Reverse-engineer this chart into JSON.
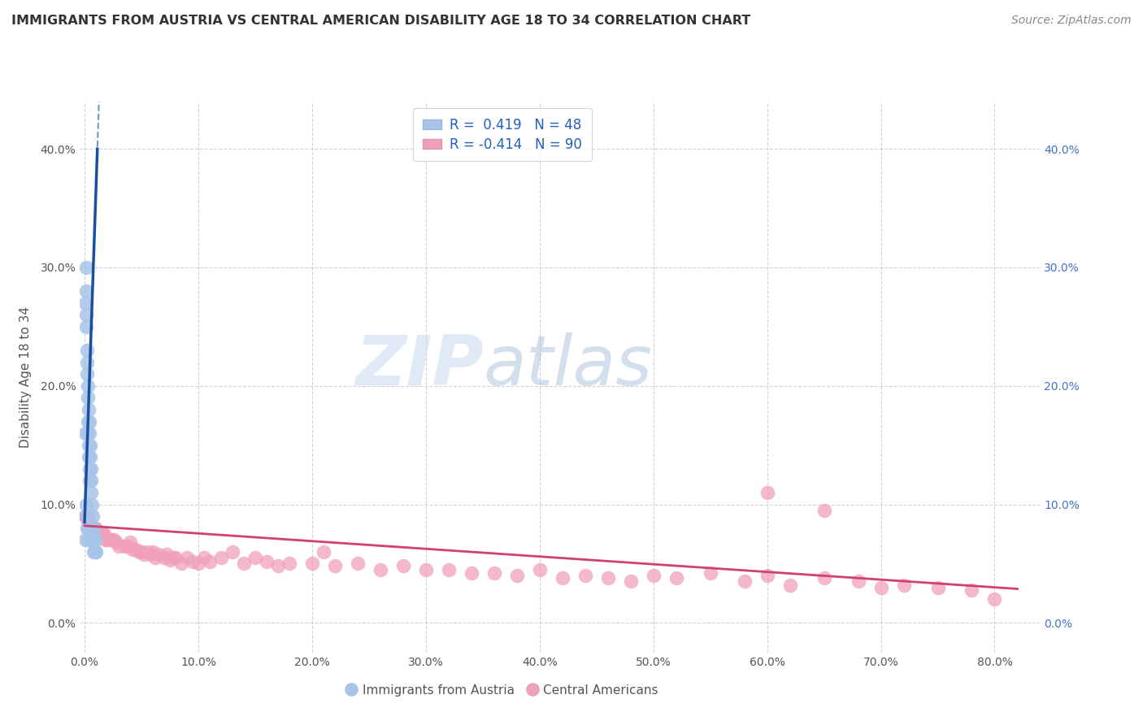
{
  "title": "IMMIGRANTS FROM AUSTRIA VS CENTRAL AMERICAN DISABILITY AGE 18 TO 34 CORRELATION CHART",
  "source": "Source: ZipAtlas.com",
  "ylabel": "Disability Age 18 to 34",
  "blue_label": "Immigrants from Austria",
  "pink_label": "Central Americans",
  "blue_R": 0.419,
  "blue_N": 48,
  "pink_R": -0.414,
  "pink_N": 90,
  "xlim": [
    -0.004,
    0.84
  ],
  "ylim": [
    -0.025,
    0.44
  ],
  "xticks": [
    0.0,
    0.1,
    0.2,
    0.3,
    0.4,
    0.5,
    0.6,
    0.7,
    0.8
  ],
  "yticks": [
    0.0,
    0.1,
    0.2,
    0.3,
    0.4
  ],
  "blue_color": "#a8c4e8",
  "pink_color": "#f0a0b8",
  "blue_line_color": "#1a4fa0",
  "pink_line_color": "#d04070",
  "watermark_zip": "ZIP",
  "watermark_atlas": "atlas",
  "background_color": "#ffffff",
  "grid_color": "#c8c8c8",
  "blue_scatter_x": [
    0.0008,
    0.0009,
    0.001,
    0.0012,
    0.0013,
    0.0014,
    0.0015,
    0.0016,
    0.0018,
    0.002,
    0.0021,
    0.0022,
    0.0024,
    0.0025,
    0.0026,
    0.0028,
    0.003,
    0.0032,
    0.0033,
    0.0035,
    0.0036,
    0.0038,
    0.004,
    0.0042,
    0.0043,
    0.0045,
    0.0046,
    0.0048,
    0.005,
    0.0052,
    0.0053,
    0.0055,
    0.0057,
    0.0059,
    0.006,
    0.0062,
    0.0065,
    0.0067,
    0.007,
    0.0072,
    0.0075,
    0.0078,
    0.008,
    0.0082,
    0.0085,
    0.009,
    0.0095,
    0.01
  ],
  "blue_scatter_y": [
    0.27,
    0.16,
    0.07,
    0.3,
    0.28,
    0.1,
    0.26,
    0.25,
    0.23,
    0.09,
    0.22,
    0.21,
    0.08,
    0.2,
    0.19,
    0.17,
    0.08,
    0.16,
    0.15,
    0.18,
    0.14,
    0.07,
    0.13,
    0.17,
    0.12,
    0.16,
    0.07,
    0.15,
    0.08,
    0.14,
    0.07,
    0.13,
    0.12,
    0.07,
    0.11,
    0.08,
    0.1,
    0.07,
    0.09,
    0.08,
    0.07,
    0.06,
    0.08,
    0.07,
    0.07,
    0.06,
    0.07,
    0.06
  ],
  "pink_scatter_x": [
    0.0005,
    0.001,
    0.0015,
    0.002,
    0.0025,
    0.003,
    0.0035,
    0.004,
    0.005,
    0.006,
    0.007,
    0.008,
    0.009,
    0.01,
    0.011,
    0.012,
    0.013,
    0.014,
    0.015,
    0.016,
    0.017,
    0.018,
    0.02,
    0.022,
    0.024,
    0.026,
    0.028,
    0.03,
    0.035,
    0.038,
    0.04,
    0.042,
    0.045,
    0.048,
    0.05,
    0.052,
    0.055,
    0.058,
    0.06,
    0.062,
    0.065,
    0.07,
    0.072,
    0.075,
    0.078,
    0.08,
    0.085,
    0.09,
    0.095,
    0.1,
    0.105,
    0.11,
    0.12,
    0.13,
    0.14,
    0.15,
    0.16,
    0.17,
    0.18,
    0.2,
    0.21,
    0.22,
    0.24,
    0.26,
    0.28,
    0.3,
    0.32,
    0.34,
    0.36,
    0.38,
    0.4,
    0.42,
    0.44,
    0.46,
    0.48,
    0.5,
    0.52,
    0.55,
    0.58,
    0.6,
    0.62,
    0.65,
    0.68,
    0.7,
    0.72,
    0.75,
    0.78,
    0.8,
    0.6,
    0.65
  ],
  "pink_scatter_y": [
    0.09,
    0.09,
    0.09,
    0.09,
    0.09,
    0.085,
    0.085,
    0.085,
    0.08,
    0.08,
    0.08,
    0.08,
    0.08,
    0.08,
    0.075,
    0.075,
    0.075,
    0.075,
    0.075,
    0.075,
    0.075,
    0.07,
    0.07,
    0.07,
    0.07,
    0.07,
    0.068,
    0.065,
    0.065,
    0.065,
    0.068,
    0.062,
    0.062,
    0.06,
    0.06,
    0.058,
    0.06,
    0.058,
    0.06,
    0.055,
    0.058,
    0.055,
    0.058,
    0.053,
    0.055,
    0.055,
    0.05,
    0.055,
    0.052,
    0.05,
    0.055,
    0.052,
    0.055,
    0.06,
    0.05,
    0.055,
    0.052,
    0.048,
    0.05,
    0.05,
    0.06,
    0.048,
    0.05,
    0.045,
    0.048,
    0.045,
    0.045,
    0.042,
    0.042,
    0.04,
    0.045,
    0.038,
    0.04,
    0.038,
    0.035,
    0.04,
    0.038,
    0.042,
    0.035,
    0.04,
    0.032,
    0.038,
    0.035,
    0.03,
    0.032,
    0.03,
    0.028,
    0.02,
    0.11,
    0.095
  ],
  "blue_trend_slope": 28.0,
  "blue_trend_intercept": 0.085,
  "pink_trend_slope": -0.065,
  "pink_trend_intercept": 0.082
}
